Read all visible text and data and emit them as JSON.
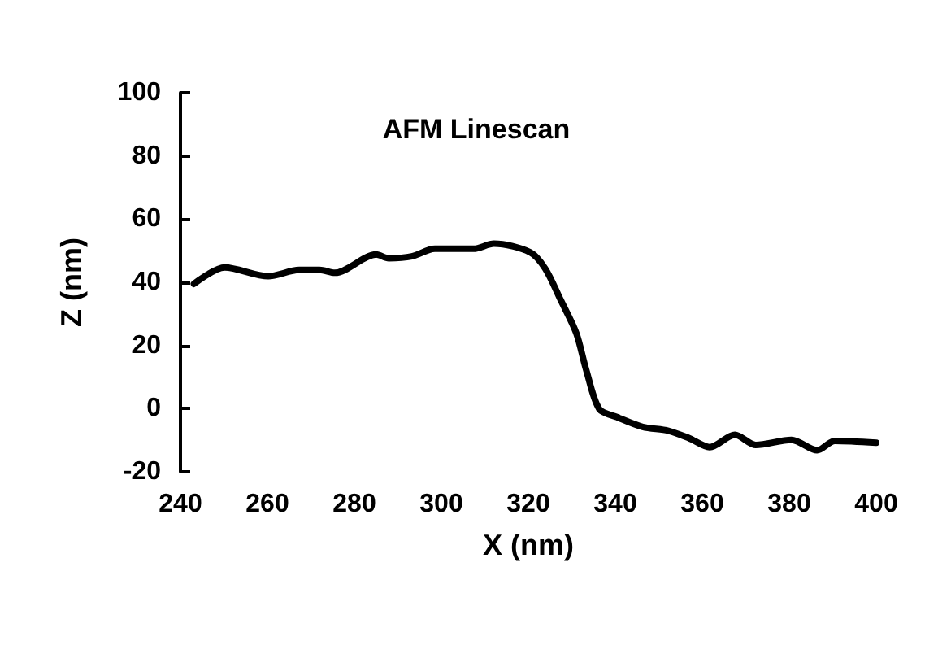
{
  "chart_data": {
    "type": "line",
    "title": "AFM Linescan",
    "xlabel": "X (nm)",
    "ylabel": "Z (nm)",
    "xlim": [
      240,
      400
    ],
    "xticks": [
      240,
      260,
      280,
      300,
      320,
      340,
      360,
      380,
      400
    ],
    "ylim": [
      -20,
      100
    ],
    "yticks": [
      -20,
      0,
      20,
      40,
      60,
      80,
      100
    ],
    "grid": false,
    "marker": "none",
    "line_style": "solid",
    "series": [
      {
        "color": "#000000",
        "x": [
          243.1,
          250.2,
          260.2,
          267.3,
          272,
          275.5,
          285,
          287.9,
          293.2,
          298.5,
          307.4,
          312.1,
          320.4,
          323.9,
          327.4,
          331,
          333.3,
          336.3,
          340.4,
          346.3,
          352.2,
          356.9,
          361.7,
          367.5,
          372.3,
          380.5,
          386.4,
          390.5,
          400
        ],
        "values": [
          39.5,
          44.7,
          41.9,
          43.9,
          43.9,
          43,
          48.8,
          47.6,
          48.2,
          50.6,
          50.6,
          52.2,
          49.5,
          44.3,
          34.5,
          24,
          12.3,
          -0.1,
          -2.7,
          -5.8,
          -7,
          -9.3,
          -12.2,
          -8.3,
          -11.5,
          -9.9,
          -13.2,
          -10.2,
          -10.8
        ]
      }
    ]
  }
}
